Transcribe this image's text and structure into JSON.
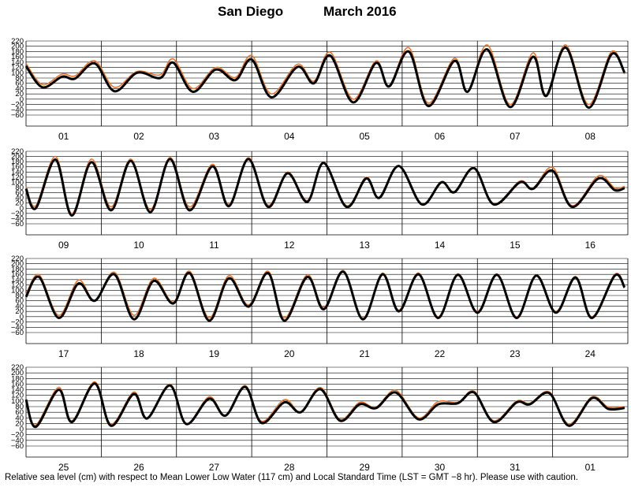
{
  "chart_data": {
    "type": "line",
    "title_location": "San Diego",
    "title_period": "March   2016",
    "footnote": "Relative sea level (cm) with respect to Mean Lower Low Water (117 cm) and Local Standard Time (LST = GMT −8 hr). Please use with caution.",
    "y_ticks": [
      "220",
      "200",
      "180",
      "160",
      "140",
      "120",
      "100",
      "80",
      "60",
      "40",
      "20",
      "0",
      "−20",
      "−40",
      "−60"
    ],
    "ylim": [
      -60,
      220
    ],
    "grid": true,
    "colors": {
      "observed": "#000000",
      "predicted": "#e8752a"
    },
    "panels": [
      {
        "days": [
          "01",
          "02",
          "03",
          "04",
          "05",
          "06",
          "07",
          "08"
        ],
        "observed": [
          [
            0,
            125
          ],
          [
            5,
            45
          ],
          [
            11,
            85
          ],
          [
            15,
            78
          ],
          [
            21,
            135
          ],
          [
            27,
            30
          ],
          [
            34,
            100
          ],
          [
            41,
            80
          ],
          [
            45,
            138
          ],
          [
            51,
            28
          ],
          [
            58,
            112
          ],
          [
            64,
            72
          ],
          [
            69,
            150
          ],
          [
            75,
            7
          ],
          [
            83,
            122
          ],
          [
            88,
            60
          ],
          [
            93,
            165
          ],
          [
            100,
            -12
          ],
          [
            107,
            137
          ],
          [
            111,
            48
          ],
          [
            117,
            180
          ],
          [
            123,
            -26
          ],
          [
            131,
            145
          ],
          [
            135,
            28
          ],
          [
            141,
            188
          ],
          [
            148,
            -30
          ],
          [
            155,
            160
          ],
          [
            159,
            12
          ],
          [
            165,
            195
          ],
          [
            172,
            -32
          ],
          [
            179,
            170
          ],
          [
            183,
            100
          ]
        ],
        "predicted": [
          [
            0,
            135
          ],
          [
            5,
            55
          ],
          [
            11,
            95
          ],
          [
            15,
            88
          ],
          [
            21,
            145
          ],
          [
            27,
            45
          ],
          [
            34,
            105
          ],
          [
            41,
            92
          ],
          [
            45,
            152
          ],
          [
            51,
            40
          ],
          [
            58,
            120
          ],
          [
            64,
            82
          ],
          [
            69,
            165
          ],
          [
            75,
            20
          ],
          [
            83,
            132
          ],
          [
            88,
            68
          ],
          [
            93,
            178
          ],
          [
            100,
            0
          ],
          [
            107,
            145
          ],
          [
            111,
            52
          ],
          [
            117,
            195
          ],
          [
            123,
            -15
          ],
          [
            131,
            155
          ],
          [
            135,
            30
          ],
          [
            141,
            205
          ],
          [
            148,
            -20
          ],
          [
            155,
            175
          ],
          [
            159,
            18
          ],
          [
            165,
            205
          ],
          [
            172,
            -20
          ],
          [
            179,
            180
          ],
          [
            183,
            95
          ]
        ]
      },
      {
        "days": [
          "09",
          "10",
          "11",
          "12",
          "13",
          "14",
          "15",
          "16"
        ],
        "observed": [
          [
            0,
            75
          ],
          [
            3,
            0
          ],
          [
            9,
            188
          ],
          [
            14,
            -28
          ],
          [
            20,
            178
          ],
          [
            26,
            -8
          ],
          [
            32,
            183
          ],
          [
            38,
            -15
          ],
          [
            44,
            190
          ],
          [
            50,
            -8
          ],
          [
            57,
            162
          ],
          [
            62,
            8
          ],
          [
            68,
            190
          ],
          [
            74,
            5
          ],
          [
            80,
            135
          ],
          [
            86,
            25
          ],
          [
            91,
            175
          ],
          [
            98,
            5
          ],
          [
            104,
            115
          ],
          [
            108,
            40
          ],
          [
            114,
            163
          ],
          [
            121,
            15
          ],
          [
            127,
            100
          ],
          [
            131,
            62
          ],
          [
            137,
            155
          ],
          [
            143,
            15
          ],
          [
            151,
            100
          ],
          [
            155,
            75
          ],
          [
            161,
            145
          ],
          [
            167,
            5
          ],
          [
            175,
            115
          ],
          [
            180,
            70
          ],
          [
            183,
            78
          ]
        ],
        "predicted": [
          [
            0,
            85
          ],
          [
            3,
            10
          ],
          [
            9,
            200
          ],
          [
            14,
            -20
          ],
          [
            20,
            190
          ],
          [
            26,
            5
          ],
          [
            32,
            190
          ],
          [
            38,
            -5
          ],
          [
            44,
            196
          ],
          [
            50,
            5
          ],
          [
            57,
            170
          ],
          [
            62,
            15
          ],
          [
            68,
            195
          ],
          [
            74,
            12
          ],
          [
            80,
            140
          ],
          [
            86,
            30
          ],
          [
            91,
            178
          ],
          [
            98,
            10
          ],
          [
            104,
            120
          ],
          [
            108,
            42
          ],
          [
            114,
            165
          ],
          [
            121,
            18
          ],
          [
            127,
            103
          ],
          [
            131,
            65
          ],
          [
            137,
            158
          ],
          [
            143,
            18
          ],
          [
            151,
            105
          ],
          [
            155,
            78
          ],
          [
            161,
            158
          ],
          [
            167,
            10
          ],
          [
            175,
            125
          ],
          [
            180,
            78
          ],
          [
            183,
            85
          ]
        ]
      },
      {
        "days": [
          "17",
          "18",
          "19",
          "20",
          "21",
          "22",
          "23",
          "24"
        ],
        "observed": [
          [
            0,
            75
          ],
          [
            4,
            150
          ],
          [
            10,
            -5
          ],
          [
            16,
            125
          ],
          [
            21,
            60
          ],
          [
            27,
            160
          ],
          [
            33,
            -10
          ],
          [
            39,
            135
          ],
          [
            45,
            50
          ],
          [
            50,
            165
          ],
          [
            56,
            -15
          ],
          [
            62,
            145
          ],
          [
            68,
            38
          ],
          [
            74,
            165
          ],
          [
            79,
            -15
          ],
          [
            86,
            150
          ],
          [
            91,
            28
          ],
          [
            97,
            170
          ],
          [
            103,
            -10
          ],
          [
            109,
            160
          ],
          [
            114,
            20
          ],
          [
            120,
            160
          ],
          [
            126,
            -5
          ],
          [
            132,
            158
          ],
          [
            138,
            15
          ],
          [
            144,
            158
          ],
          [
            150,
            -5
          ],
          [
            156,
            155
          ],
          [
            162,
            15
          ],
          [
            168,
            148
          ],
          [
            173,
            -5
          ],
          [
            180,
            155
          ],
          [
            183,
            110
          ]
        ],
        "predicted": [
          [
            0,
            85
          ],
          [
            4,
            158
          ],
          [
            10,
            5
          ],
          [
            16,
            138
          ],
          [
            21,
            62
          ],
          [
            27,
            168
          ],
          [
            33,
            5
          ],
          [
            39,
            145
          ],
          [
            45,
            55
          ],
          [
            50,
            172
          ],
          [
            56,
            -5
          ],
          [
            62,
            155
          ],
          [
            68,
            45
          ],
          [
            74,
            172
          ],
          [
            79,
            -5
          ],
          [
            86,
            158
          ],
          [
            91,
            35
          ],
          [
            97,
            175
          ],
          [
            103,
            -5
          ],
          [
            109,
            165
          ],
          [
            114,
            25
          ],
          [
            120,
            165
          ],
          [
            126,
            0
          ],
          [
            132,
            162
          ],
          [
            138,
            20
          ],
          [
            144,
            162
          ],
          [
            150,
            0
          ],
          [
            156,
            158
          ],
          [
            162,
            20
          ],
          [
            168,
            152
          ],
          [
            173,
            0
          ],
          [
            180,
            160
          ],
          [
            183,
            115
          ]
        ]
      },
      {
        "days": [
          "25",
          "26",
          "27",
          "28",
          "29",
          "30",
          "31",
          "01"
        ],
        "observed": [
          [
            0,
            105
          ],
          [
            3,
            8
          ],
          [
            10,
            140
          ],
          [
            14,
            25
          ],
          [
            21,
            162
          ],
          [
            26,
            12
          ],
          [
            33,
            125
          ],
          [
            37,
            38
          ],
          [
            44,
            155
          ],
          [
            49,
            18
          ],
          [
            56,
            108
          ],
          [
            61,
            48
          ],
          [
            67,
            150
          ],
          [
            72,
            22
          ],
          [
            79,
            95
          ],
          [
            84,
            60
          ],
          [
            90,
            142
          ],
          [
            96,
            30
          ],
          [
            102,
            88
          ],
          [
            107,
            75
          ],
          [
            113,
            130
          ],
          [
            120,
            35
          ],
          [
            126,
            88
          ],
          [
            132,
            92
          ],
          [
            137,
            130
          ],
          [
            143,
            25
          ],
          [
            150,
            95
          ],
          [
            154,
            88
          ],
          [
            160,
            128
          ],
          [
            166,
            12
          ],
          [
            173,
            110
          ],
          [
            178,
            72
          ],
          [
            183,
            75
          ]
        ],
        "predicted": [
          [
            0,
            95
          ],
          [
            3,
            15
          ],
          [
            10,
            148
          ],
          [
            14,
            30
          ],
          [
            21,
            168
          ],
          [
            26,
            18
          ],
          [
            33,
            132
          ],
          [
            37,
            40
          ],
          [
            44,
            160
          ],
          [
            49,
            20
          ],
          [
            56,
            115
          ],
          [
            61,
            50
          ],
          [
            67,
            155
          ],
          [
            72,
            28
          ],
          [
            79,
            105
          ],
          [
            84,
            62
          ],
          [
            90,
            148
          ],
          [
            96,
            35
          ],
          [
            102,
            95
          ],
          [
            107,
            78
          ],
          [
            113,
            138
          ],
          [
            120,
            40
          ],
          [
            126,
            98
          ],
          [
            132,
            95
          ],
          [
            137,
            135
          ],
          [
            143,
            30
          ],
          [
            150,
            100
          ],
          [
            154,
            92
          ],
          [
            160,
            132
          ],
          [
            166,
            18
          ],
          [
            173,
            115
          ],
          [
            178,
            78
          ],
          [
            183,
            80
          ]
        ]
      }
    ]
  }
}
